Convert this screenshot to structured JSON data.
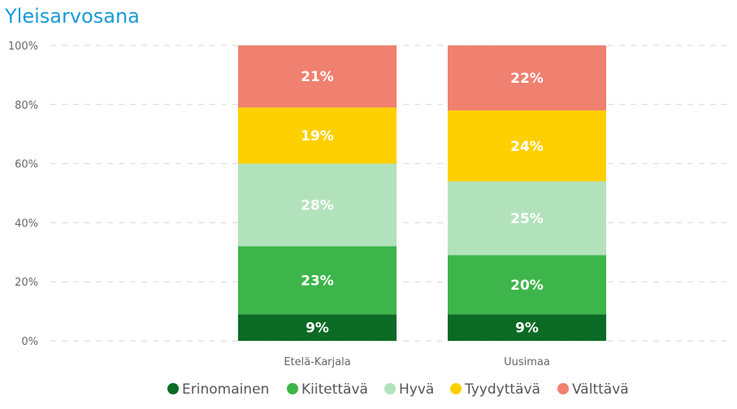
{
  "chart_data": {
    "type": "bar",
    "stacked": true,
    "title": "Yleisarvosana",
    "xlabel": "",
    "ylabel": "",
    "ylim": [
      0,
      100
    ],
    "y_ticks": [
      "0%",
      "20%",
      "40%",
      "60%",
      "80%",
      "100%"
    ],
    "categories": [
      "Etelä-Karjala",
      "Uusimaa"
    ],
    "series": [
      {
        "name": "Erinomainen",
        "color": "#0b6b24",
        "values": [
          9,
          9
        ],
        "labels": [
          "9%",
          "9%"
        ]
      },
      {
        "name": "Kiitettävä",
        "color": "#3db54a",
        "values": [
          23,
          20
        ],
        "labels": [
          "23%",
          "20%"
        ]
      },
      {
        "name": "Hyvä",
        "color": "#b2e2bc",
        "values": [
          28,
          25
        ],
        "labels": [
          "28%",
          "25%"
        ]
      },
      {
        "name": "Tyydyttävä",
        "color": "#ffd000",
        "values": [
          19,
          24
        ],
        "labels": [
          "19%",
          "24%"
        ]
      },
      {
        "name": "Välttävä",
        "color": "#f08070",
        "values": [
          21,
          22
        ],
        "labels": [
          "21%",
          "22%"
        ]
      }
    ],
    "grid": true,
    "legend": "bottom",
    "title_color": "#1a9ad6"
  }
}
